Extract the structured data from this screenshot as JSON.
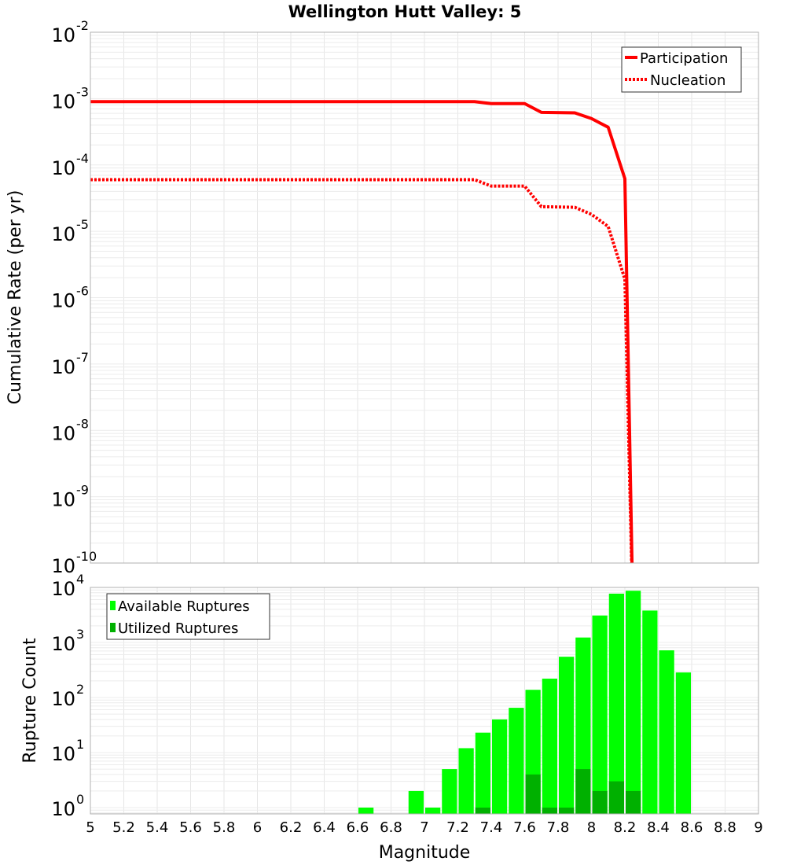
{
  "chart_data": [
    {
      "type": "line",
      "title": "Wellington Hutt Valley: 5",
      "xlabel": "Magnitude",
      "ylabel": "Cumulative Rate (per yr)",
      "xlim": [
        5,
        9
      ],
      "ylim": [
        1e-10,
        0.01
      ],
      "yscale": "log",
      "grid": true,
      "legend_position": "top-right",
      "ytick_exponents": [
        "-2",
        "-3",
        "-4",
        "-5",
        "-6",
        "-7",
        "-8",
        "-9",
        "-10"
      ],
      "series": [
        {
          "name": "Participation",
          "style": "solid",
          "color": "#ff0000",
          "x": [
            5.0,
            7.3,
            7.4,
            7.6,
            7.7,
            7.9,
            8.0,
            8.1,
            8.2,
            8.25
          ],
          "y": [
            0.0009,
            0.0009,
            0.00084,
            0.00084,
            0.00062,
            0.00061,
            0.0005,
            0.00037,
            6.2e-05,
            1e-11
          ]
        },
        {
          "name": "Nucleation",
          "style": "dotted",
          "color": "#ff0000",
          "x": [
            5.0,
            7.3,
            7.4,
            7.6,
            7.7,
            7.9,
            8.0,
            8.1,
            8.2,
            8.25
          ],
          "y": [
            6e-05,
            6e-05,
            4.8e-05,
            4.8e-05,
            2.35e-05,
            2.3e-05,
            1.8e-05,
            1.18e-05,
            1.9e-06,
            1e-11
          ]
        }
      ]
    },
    {
      "type": "bar",
      "xlabel": "Magnitude",
      "ylabel": "Rupture Count",
      "xlim": [
        5,
        9
      ],
      "ylim": [
        0.8,
        10000
      ],
      "yscale": "log",
      "grid": true,
      "legend_position": "top-left",
      "bin_width": 0.1,
      "ytick_exponents": [
        "0",
        "1",
        "2",
        "3",
        "4"
      ],
      "xticks": [
        "5",
        "5.2",
        "5.4",
        "5.6",
        "5.8",
        "6",
        "6.2",
        "6.4",
        "6.6",
        "6.8",
        "7",
        "7.2",
        "7.4",
        "7.6",
        "7.8",
        "8",
        "8.2",
        "8.4",
        "8.6",
        "8.8",
        "9"
      ],
      "series": [
        {
          "name": "Available Ruptures",
          "color": "#00ff00",
          "bin_start": [
            6.6,
            6.9,
            7.0,
            7.1,
            7.2,
            7.3,
            7.4,
            7.5,
            7.6,
            7.7,
            7.8,
            7.9,
            8.0,
            8.1,
            8.2,
            8.3,
            8.4,
            8.5
          ],
          "values": [
            1,
            2,
            1,
            5,
            12,
            23,
            40,
            65,
            138,
            220,
            550,
            1230,
            3090,
            7700,
            8700,
            3800,
            720,
            285
          ]
        },
        {
          "name": "Utilized Ruptures",
          "color": "#00b000",
          "bin_start": [
            7.3,
            7.6,
            7.7,
            7.8,
            7.9,
            8.0,
            8.1,
            8.2
          ],
          "values": [
            1,
            4,
            1,
            1,
            5,
            2,
            3,
            2
          ]
        }
      ]
    }
  ]
}
